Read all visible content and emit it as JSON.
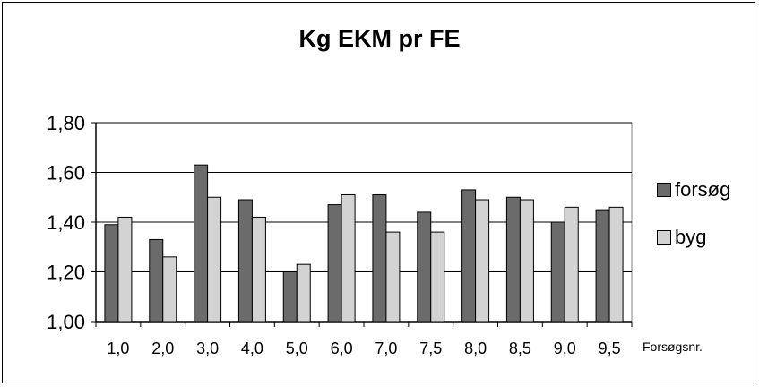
{
  "chart_data": {
    "type": "bar",
    "title": "Kg EKM pr FE",
    "xlabel": "Forsøgsnr.",
    "ylabel": "",
    "ylim": [
      1.0,
      1.8
    ],
    "yticks": [
      "1,00",
      "1,20",
      "1,40",
      "1,60",
      "1,80"
    ],
    "categories": [
      "1,0",
      "2,0",
      "3,0",
      "4,0",
      "5,0",
      "6,0",
      "7,0",
      "7,5",
      "8,0",
      "8,5",
      "9,0",
      "9,5"
    ],
    "series": [
      {
        "name": "forsøg",
        "color": "#6b6b6b",
        "values": [
          1.39,
          1.33,
          1.63,
          1.49,
          1.2,
          1.47,
          1.51,
          1.44,
          1.53,
          1.5,
          1.4,
          1.45
        ]
      },
      {
        "name": "byg",
        "color": "#d3d3d3",
        "values": [
          1.42,
          1.26,
          1.5,
          1.42,
          1.23,
          1.51,
          1.36,
          1.36,
          1.49,
          1.49,
          1.46,
          1.46
        ]
      }
    ],
    "grid": true,
    "legend_position": "right"
  }
}
